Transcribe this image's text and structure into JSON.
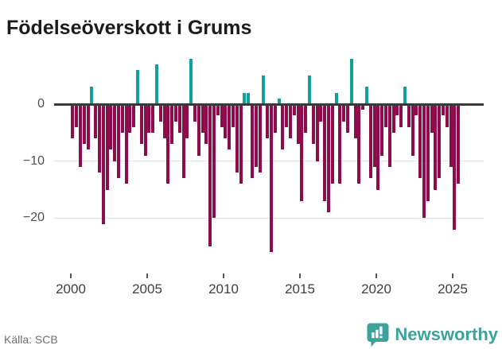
{
  "page": {
    "title": "Födelseöverskott i Grums"
  },
  "footer": {
    "source": "Källa: SCB",
    "brand": "Newsworthy"
  },
  "chart_data": {
    "type": "bar",
    "title": "Födelseöverskott i Grums",
    "subtitle": "",
    "xlabel": "",
    "ylabel": "",
    "x_unit": "quarter",
    "start_period": "2000-Q1",
    "end_period": "2025-Q2",
    "frequency": "quarterly",
    "x_tick_years": [
      2000,
      2005,
      2010,
      2015,
      2020,
      2025
    ],
    "y_ticks": [
      {
        "value": 0,
        "label": "0"
      },
      {
        "value": -10,
        "label": "−10"
      },
      {
        "value": -20,
        "label": "−20"
      }
    ],
    "ylim": [
      -27,
      9
    ],
    "grid": "horizontal-light",
    "legend_position": "none",
    "colors": {
      "positive": "#12a09b",
      "negative": "#8e0c4b"
    },
    "values": [
      -6,
      -4,
      -11,
      -7,
      -8,
      3,
      -6,
      -12,
      -21,
      -15,
      -8,
      -10,
      -13,
      -5,
      -14,
      -5,
      -4,
      6,
      -7,
      -9,
      -5,
      -5,
      7,
      -3,
      -6,
      -14,
      -7,
      -3,
      -5,
      -13,
      -6,
      8,
      -3,
      -9,
      -5,
      -7,
      -25,
      -20,
      -2,
      -4,
      -6,
      -8,
      -4,
      -12,
      -14,
      2,
      2,
      -13,
      -11,
      -12,
      5,
      -6,
      -26,
      -5,
      1,
      -8,
      -4,
      -6,
      -2,
      -7,
      -17,
      -5,
      5,
      -7,
      -10,
      -3,
      -17,
      -19,
      -14,
      2,
      -14,
      -3,
      -5,
      8,
      -6,
      -14,
      -1,
      3,
      -13,
      -11,
      -15,
      -9,
      -4,
      -11,
      -5,
      -2,
      -4,
      3,
      -4,
      -9,
      -2,
      -13,
      -20,
      -17,
      -5,
      -15,
      -13,
      -2,
      -4,
      -11,
      -22,
      -14
    ]
  }
}
